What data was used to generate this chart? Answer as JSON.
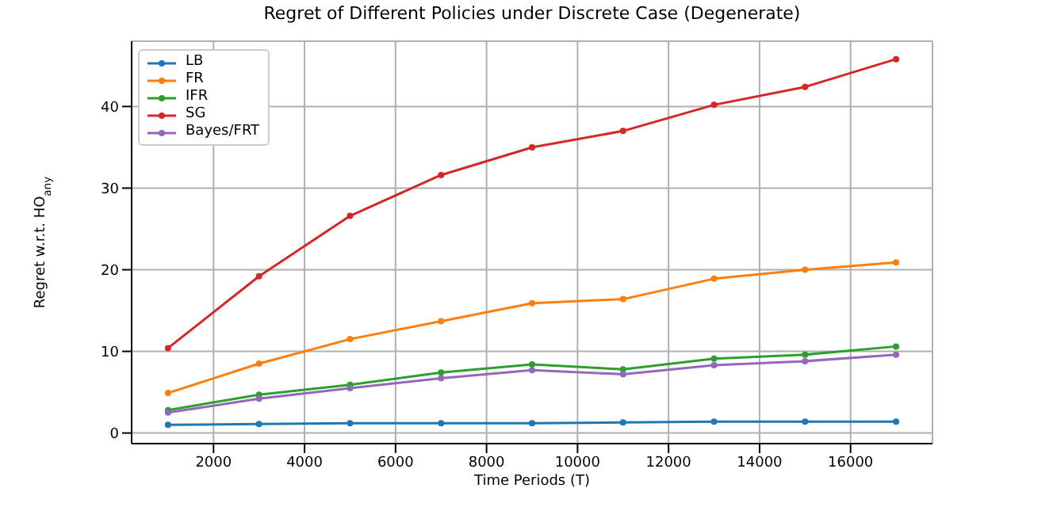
{
  "chart_data": {
    "type": "line",
    "title": "Regret of Different Policies under Discrete Case (Degenerate)",
    "xlabel": "Time Periods (T)",
    "ylabel": "Regret w.r.t. HO$_{any}$",
    "x": [
      1000,
      3000,
      5000,
      7000,
      9000,
      11000,
      13000,
      15000,
      17000
    ],
    "series": [
      {
        "name": "LB",
        "color": "#1f77b4",
        "values": [
          1.0,
          1.1,
          1.2,
          1.2,
          1.2,
          1.3,
          1.4,
          1.4,
          1.4
        ]
      },
      {
        "name": "FR",
        "color": "#ff7f0e",
        "values": [
          4.9,
          8.5,
          11.5,
          13.7,
          15.9,
          16.4,
          18.9,
          20.0,
          20.9
        ]
      },
      {
        "name": "IFR",
        "color": "#2ca02c",
        "values": [
          2.8,
          4.7,
          5.9,
          7.4,
          8.4,
          7.8,
          9.1,
          9.6,
          10.6
        ]
      },
      {
        "name": "SG",
        "color": "#d62728",
        "values": [
          10.4,
          19.2,
          26.6,
          31.6,
          35.0,
          37.0,
          40.2,
          42.4,
          45.8
        ]
      },
      {
        "name": "Bayes/FRT",
        "color": "#9467bd",
        "values": [
          2.5,
          4.2,
          5.5,
          6.7,
          7.7,
          7.2,
          8.3,
          8.8,
          9.6
        ]
      }
    ],
    "xlim": [
      200,
      17800
    ],
    "ylim": [
      -1.3,
      48
    ],
    "xticks": [
      2000,
      4000,
      6000,
      8000,
      10000,
      12000,
      14000,
      16000
    ],
    "yticks": [
      0,
      10,
      20,
      30,
      40
    ],
    "grid": true,
    "legend": "top left",
    "marker": "circle",
    "line_style": "solid"
  }
}
